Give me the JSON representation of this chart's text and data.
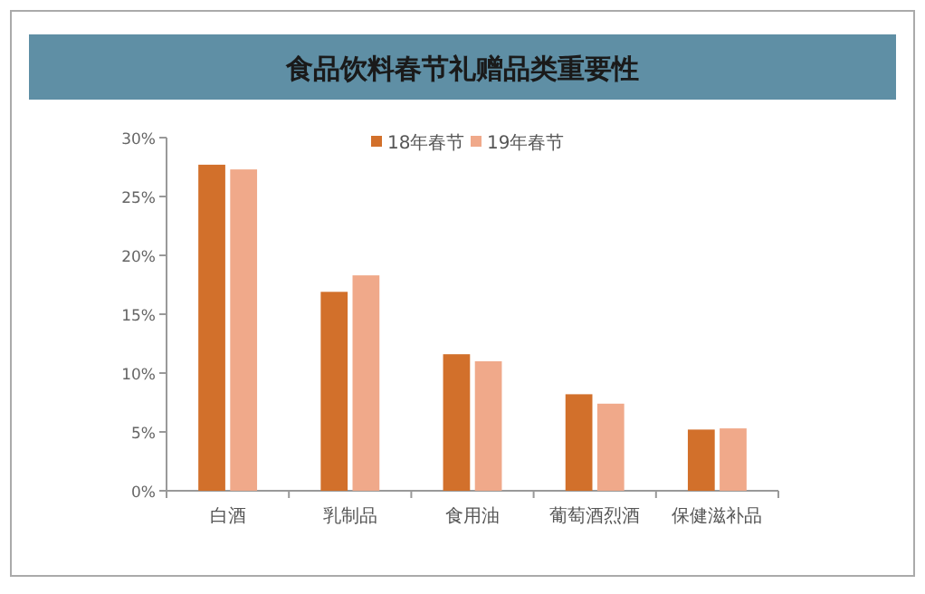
{
  "chart_data": {
    "type": "bar",
    "title": "食品饮料春节礼赠品类重要性",
    "categories": [
      "白酒",
      "乳制品",
      "食用油",
      "葡萄酒烈酒",
      "保健滋补品"
    ],
    "series": [
      {
        "name": "18年春节",
        "color": "#d2702b",
        "values": [
          27.7,
          16.9,
          11.6,
          8.2,
          5.2
        ]
      },
      {
        "name": "19年春节",
        "color": "#f0a98a",
        "values": [
          27.3,
          18.3,
          11.0,
          7.4,
          5.3
        ]
      }
    ],
    "ylim": [
      0,
      30
    ],
    "yticks": [
      {
        "value": 0,
        "label": "0%"
      },
      {
        "value": 5,
        "label": "5%"
      },
      {
        "value": 10,
        "label": "10%"
      },
      {
        "value": 15,
        "label": "15%"
      },
      {
        "value": 20,
        "label": "20%"
      },
      {
        "value": 25,
        "label": "25%"
      },
      {
        "value": 30,
        "label": "30%"
      }
    ],
    "legend": "top",
    "grid": false
  }
}
